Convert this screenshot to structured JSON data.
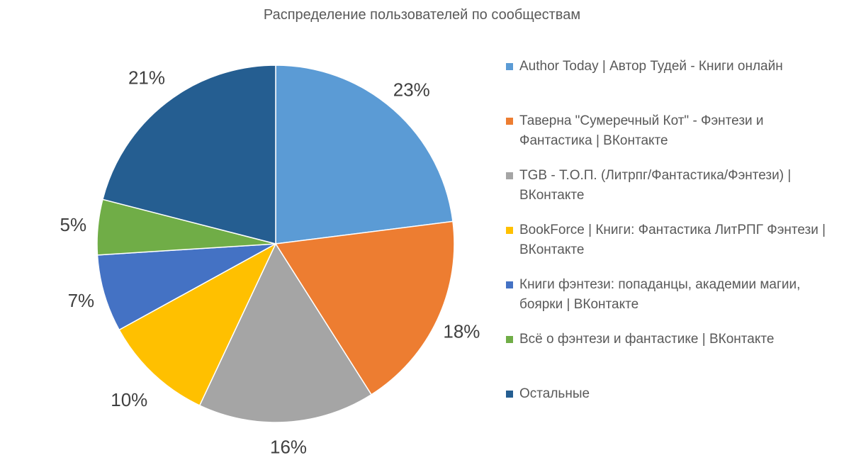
{
  "chart_data": {
    "type": "pie",
    "title": "Распределение пользователей по сообществам",
    "slices": [
      {
        "name": "Author Today | Автор Тудей - Книги онлайн",
        "value": 23,
        "label": "23%",
        "color": "#5B9BD5"
      },
      {
        "name": "Таверна \"Сумеречный Кот\" - Фэнтези и Фантастика | ВКонтакте",
        "value": 18,
        "label": "18%",
        "color": "#ED7D31"
      },
      {
        "name": "TGB - Т.О.П. (Литрпг/Фантастика/Фэнтези) | ВКонтакте",
        "value": 16,
        "label": "16%",
        "color": "#A5A5A5"
      },
      {
        "name": "BookForce | Книги: Фантастика ЛитРПГ Фэнтези | ВКонтакте",
        "value": 10,
        "label": "10%",
        "color": "#FFC000"
      },
      {
        "name": "Книги фэнтези: попаданцы, академии магии, боярки | ВКонтакте",
        "value": 7,
        "label": "7%",
        "color": "#4472C4"
      },
      {
        "name": "Всё о фэнтези и фантастике | ВКонтакте",
        "value": 5,
        "label": "5%",
        "color": "#70AD47"
      },
      {
        "name": "Остальные",
        "value": 21,
        "label": "21%",
        "color": "#255E91"
      }
    ],
    "legend_position": "right",
    "start_angle": "12 o'clock",
    "direction": "clockwise"
  }
}
